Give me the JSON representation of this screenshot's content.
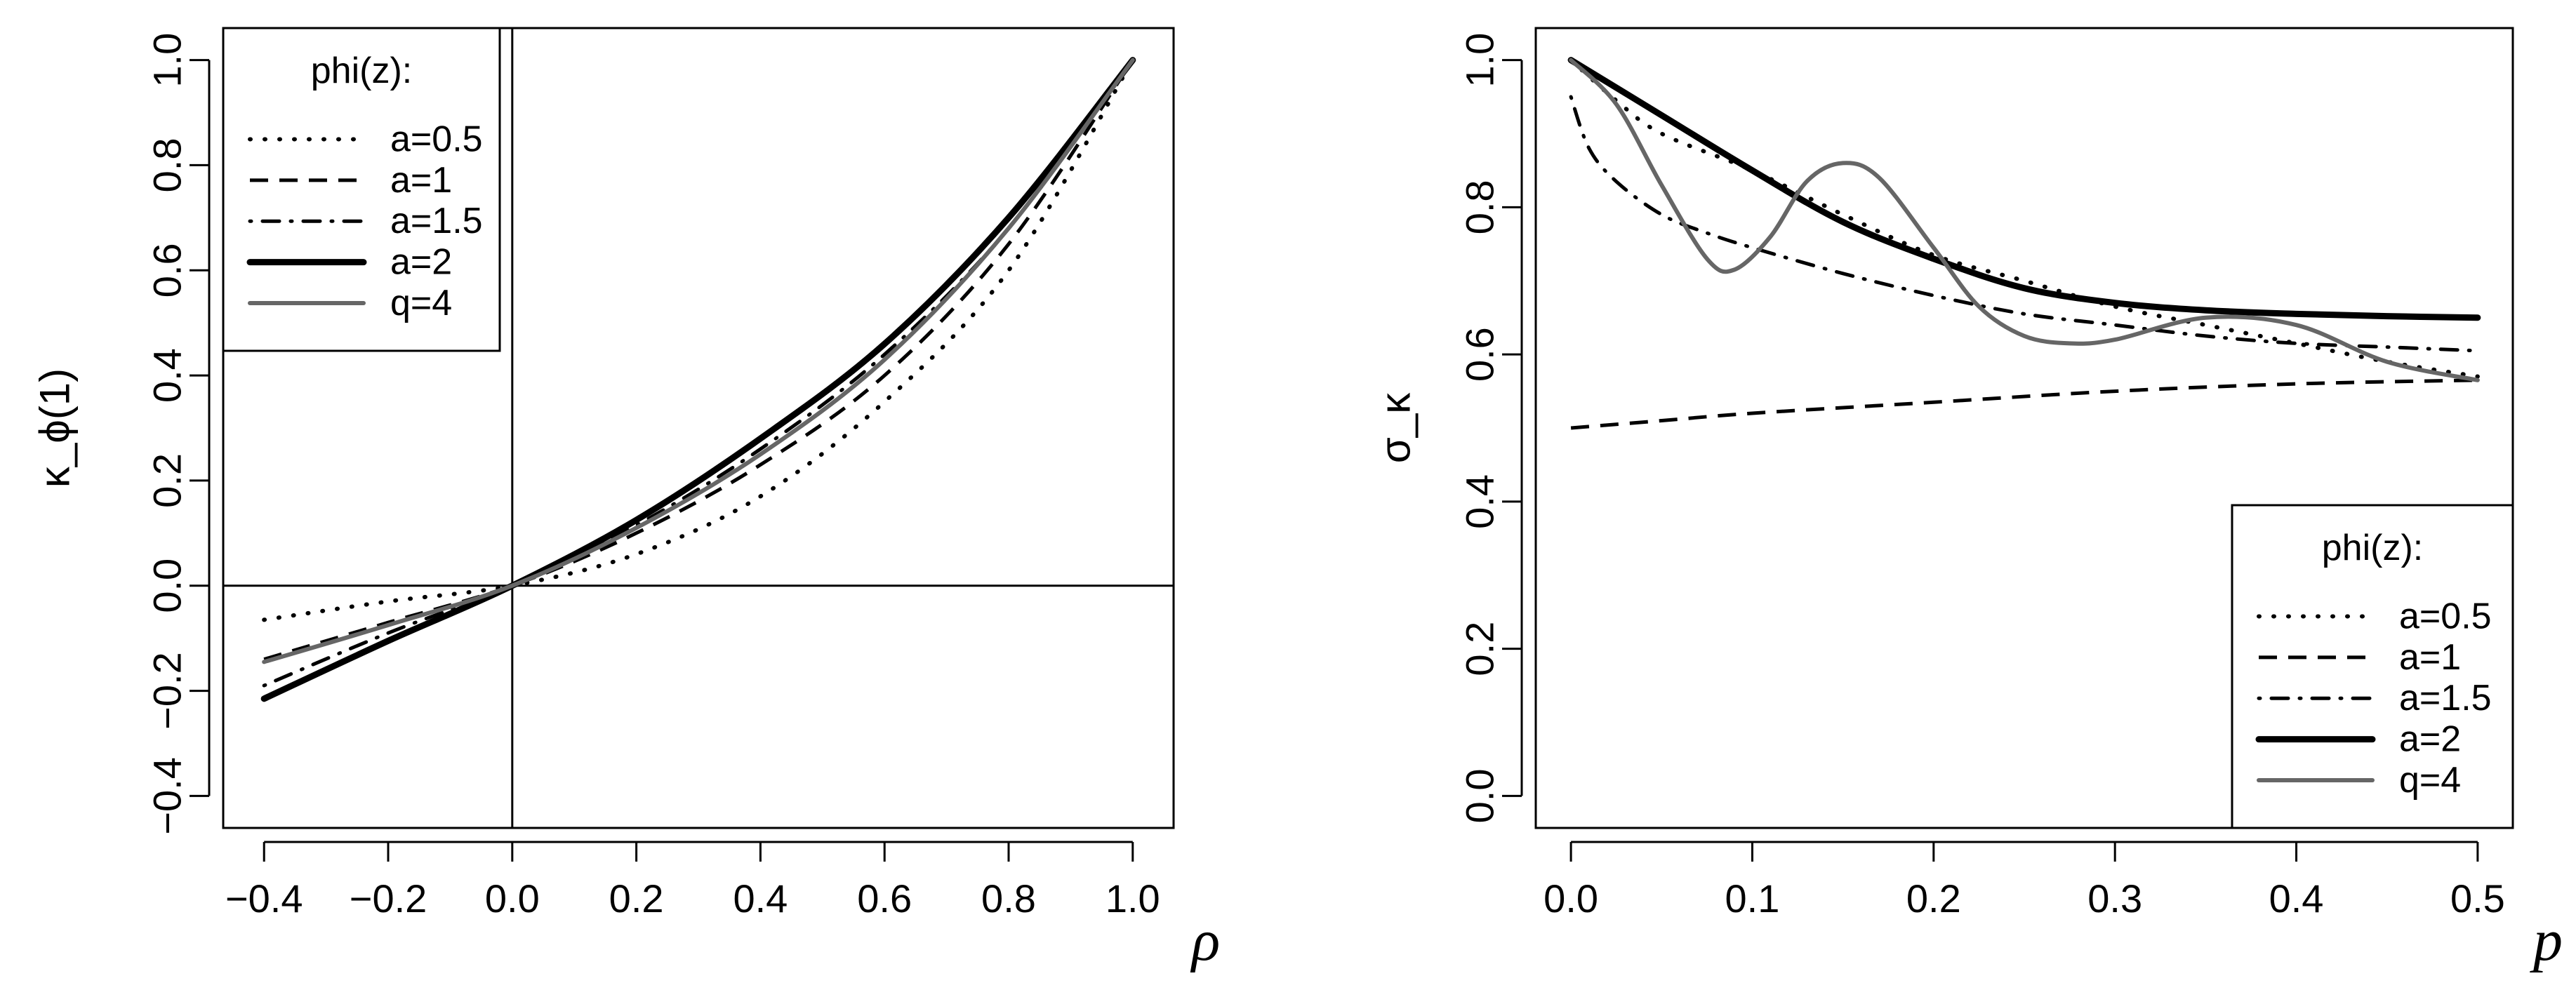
{
  "chart_data": [
    {
      "type": "line",
      "xlabel": "ρ",
      "ylabel": "κ_ϕ(1)",
      "xlim": [
        -0.4,
        1.0
      ],
      "ylim": [
        -0.4,
        1.0
      ],
      "x_ticks": [
        "−0.4",
        "−0.2",
        "0.0",
        "0.2",
        "0.4",
        "0.6",
        "0.8",
        "1.0"
      ],
      "y_ticks": [
        "−0.4",
        "−0.2",
        "0.0",
        "0.2",
        "0.4",
        "0.6",
        "0.8",
        "1.0"
      ],
      "reference_lines": {
        "x": 0,
        "y": 0
      },
      "legend": {
        "title": "phi(z):",
        "placement": "top-left"
      },
      "series": [
        {
          "name": "a=0.5",
          "style": "dotted",
          "color": "#000000",
          "x": [
            -0.4,
            -0.2,
            0.0,
            0.2,
            0.4,
            0.6,
            0.8,
            1.0
          ],
          "y": [
            -0.065,
            -0.03,
            0.0,
            0.06,
            0.17,
            0.35,
            0.6,
            1.0
          ]
        },
        {
          "name": "a=1",
          "style": "dashed",
          "color": "#000000",
          "x": [
            -0.4,
            -0.2,
            0.0,
            0.2,
            0.4,
            0.6,
            0.8,
            1.0
          ],
          "y": [
            -0.14,
            -0.07,
            0.0,
            0.1,
            0.23,
            0.4,
            0.65,
            1.0
          ]
        },
        {
          "name": "a=1.5",
          "style": "dotdash",
          "color": "#000000",
          "x": [
            -0.4,
            -0.2,
            0.0,
            0.2,
            0.4,
            0.6,
            0.8,
            1.0
          ],
          "y": [
            -0.19,
            -0.09,
            0.0,
            0.115,
            0.26,
            0.44,
            0.68,
            1.0
          ]
        },
        {
          "name": "a=2",
          "style": "solid-thick",
          "color": "#000000",
          "x": [
            -0.4,
            -0.2,
            0.0,
            0.2,
            0.4,
            0.6,
            0.8,
            1.0
          ],
          "y": [
            -0.215,
            -0.105,
            0.0,
            0.125,
            0.28,
            0.46,
            0.7,
            1.0
          ]
        },
        {
          "name": "q=4",
          "style": "solid-gray",
          "color": "#666666",
          "x": [
            -0.4,
            -0.2,
            0.0,
            0.2,
            0.4,
            0.6,
            0.8,
            1.0
          ],
          "y": [
            -0.145,
            -0.075,
            0.0,
            0.11,
            0.25,
            0.43,
            0.68,
            1.0
          ]
        }
      ]
    },
    {
      "type": "line",
      "xlabel": "p",
      "ylabel": "σ_κ",
      "xlim": [
        0.0,
        0.5
      ],
      "ylim": [
        0.0,
        1.0
      ],
      "x_ticks": [
        "0.0",
        "0.1",
        "0.2",
        "0.3",
        "0.4",
        "0.5"
      ],
      "y_ticks": [
        "0.0",
        "0.2",
        "0.4",
        "0.6",
        "0.8",
        "1.0"
      ],
      "legend": {
        "title": "phi(z):",
        "placement": "bottom-right"
      },
      "series": [
        {
          "name": "a=0.5",
          "style": "dotted",
          "color": "#000000",
          "x": [
            0.0,
            0.025,
            0.05,
            0.1,
            0.15,
            0.2,
            0.25,
            0.3,
            0.35,
            0.4,
            0.45,
            0.5
          ],
          "y": [
            1.0,
            0.945,
            0.9,
            0.85,
            0.79,
            0.735,
            0.7,
            0.665,
            0.64,
            0.615,
            0.59,
            0.57
          ]
        },
        {
          "name": "a=1",
          "style": "dashed",
          "color": "#000000",
          "x": [
            0.0,
            0.05,
            0.1,
            0.2,
            0.3,
            0.4,
            0.5
          ],
          "y": [
            0.5,
            0.51,
            0.52,
            0.535,
            0.55,
            0.56,
            0.565
          ]
        },
        {
          "name": "a=1.5",
          "style": "dotdash",
          "color": "#000000",
          "x": [
            0.0,
            0.01,
            0.025,
            0.05,
            0.075,
            0.1,
            0.15,
            0.2,
            0.25,
            0.3,
            0.35,
            0.4,
            0.45,
            0.5
          ],
          "y": [
            0.95,
            0.88,
            0.835,
            0.79,
            0.765,
            0.745,
            0.71,
            0.68,
            0.655,
            0.64,
            0.625,
            0.615,
            0.61,
            0.605
          ]
        },
        {
          "name": "a=2",
          "style": "solid-thick",
          "color": "#000000",
          "x": [
            0.0,
            0.05,
            0.1,
            0.15,
            0.2,
            0.25,
            0.3,
            0.35,
            0.4,
            0.45,
            0.5
          ],
          "y": [
            1.0,
            0.925,
            0.85,
            0.78,
            0.73,
            0.69,
            0.67,
            0.66,
            0.655,
            0.652,
            0.65
          ]
        },
        {
          "name": "q=4",
          "style": "solid-gray",
          "color": "#666666",
          "x": [
            0.0,
            0.025,
            0.05,
            0.075,
            0.09,
            0.11,
            0.13,
            0.15,
            0.17,
            0.2,
            0.225,
            0.25,
            0.275,
            0.3,
            0.35,
            0.4,
            0.45,
            0.5
          ],
          "y": [
            1.0,
            0.94,
            0.83,
            0.73,
            0.715,
            0.76,
            0.835,
            0.86,
            0.84,
            0.745,
            0.665,
            0.625,
            0.615,
            0.62,
            0.65,
            0.64,
            0.59,
            0.565
          ]
        }
      ]
    }
  ]
}
